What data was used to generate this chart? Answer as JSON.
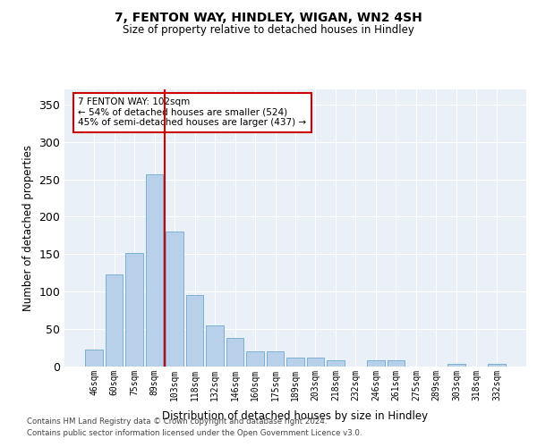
{
  "title1": "7, FENTON WAY, HINDLEY, WIGAN, WN2 4SH",
  "title2": "Size of property relative to detached houses in Hindley",
  "xlabel": "Distribution of detached houses by size in Hindley",
  "ylabel": "Number of detached properties",
  "categories": [
    "46sqm",
    "60sqm",
    "75sqm",
    "89sqm",
    "103sqm",
    "118sqm",
    "132sqm",
    "146sqm",
    "160sqm",
    "175sqm",
    "189sqm",
    "203sqm",
    "218sqm",
    "232sqm",
    "246sqm",
    "261sqm",
    "275sqm",
    "289sqm",
    "303sqm",
    "318sqm",
    "332sqm"
  ],
  "values": [
    23,
    123,
    152,
    257,
    180,
    95,
    55,
    38,
    20,
    20,
    12,
    12,
    8,
    0,
    8,
    8,
    0,
    0,
    4,
    0,
    4
  ],
  "bar_color": "#b8d0ea",
  "bar_edge_color": "#7aafd4",
  "vline_color": "#cc0000",
  "vline_pos": 3.5,
  "annotation_text": "7 FENTON WAY: 102sqm\n← 54% of detached houses are smaller (524)\n45% of semi-detached houses are larger (437) →",
  "annotation_box_color": "#ffffff",
  "annotation_box_edge": "#cc0000",
  "ylim": [
    0,
    370
  ],
  "yticks": [
    0,
    50,
    100,
    150,
    200,
    250,
    300,
    350
  ],
  "bg_color": "#eaf0f8",
  "grid_color": "#d0dae8",
  "footer1": "Contains HM Land Registry data © Crown copyright and database right 2024.",
  "footer2": "Contains public sector information licensed under the Open Government Licence v3.0."
}
